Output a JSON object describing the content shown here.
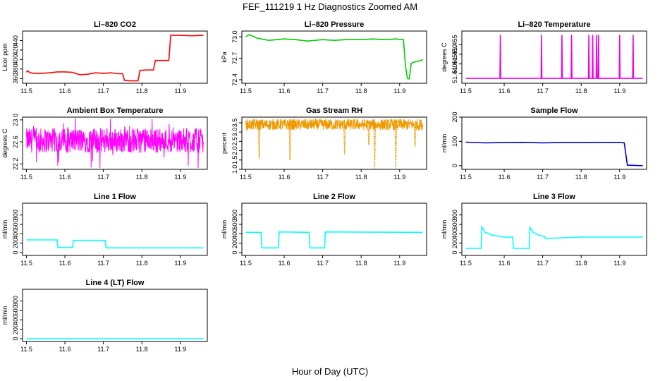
{
  "figure": {
    "title": "FEF_111219  1 Hz Diagnostics Zoomed AM",
    "xlabel": "Hour of Day (UTC)"
  },
  "chart_data": [
    {
      "type": "line",
      "title": "Li–820 CO2",
      "ylabel": "Licor ppm",
      "color": "#ff0000",
      "xlim": [
        11.49,
        11.97
      ],
      "ylim": [
        350,
        460
      ],
      "xticks": [
        "11.5",
        "11.6",
        "11.7",
        "11.8",
        "11.9"
      ],
      "yticks": [
        "360",
        "380",
        "400",
        "420",
        "440"
      ],
      "series": [
        {
          "x": [
            11.5,
            11.503,
            11.51,
            11.52,
            11.54,
            11.56,
            11.58,
            11.6,
            11.62,
            11.63,
            11.64,
            11.66,
            11.68,
            11.7,
            11.72,
            11.74,
            11.75,
            11.755,
            11.77,
            11.78,
            11.79,
            11.795,
            11.81,
            11.83,
            11.835,
            11.85,
            11.87,
            11.875,
            11.9,
            11.93,
            11.96
          ],
          "y": [
            373,
            376,
            372,
            371,
            371,
            372,
            374,
            374,
            373,
            370,
            368,
            369,
            372,
            371,
            372,
            370,
            370,
            356,
            355,
            355,
            355,
            377,
            378,
            378,
            398,
            398,
            398,
            451,
            451,
            450,
            451
          ]
        }
      ]
    },
    {
      "type": "line",
      "title": "Li–820 Pressure",
      "ylabel": "kPa",
      "color": "#00cc00",
      "xlim": [
        11.49,
        11.97
      ],
      "ylim": [
        72.35,
        73.08
      ],
      "xticks": [
        "11.5",
        "11.6",
        "11.7",
        "11.8",
        "11.9"
      ],
      "yticks": [
        "72.4",
        "72.7",
        "73.0"
      ],
      "series": [
        {
          "x": [
            11.5,
            11.51,
            11.53,
            11.56,
            11.6,
            11.63,
            11.66,
            11.7,
            11.73,
            11.76,
            11.8,
            11.83,
            11.86,
            11.89,
            11.91,
            11.915,
            11.92,
            11.925,
            11.93,
            11.94,
            11.95,
            11.96
          ],
          "y": [
            73.0,
            73.03,
            72.98,
            72.95,
            72.97,
            72.96,
            72.94,
            72.96,
            72.95,
            72.96,
            72.96,
            72.97,
            72.96,
            72.97,
            72.96,
            72.6,
            72.42,
            72.41,
            72.63,
            72.65,
            72.66,
            72.68
          ]
        }
      ]
    },
    {
      "type": "line",
      "title": "Li–820 Temperature",
      "ylabel": "degrees C",
      "color": "#ee00ee",
      "xlim": [
        11.49,
        11.97
      ],
      "ylim": [
        51.435,
        51.462
      ],
      "xticks": [
        "11.5",
        "11.6",
        "11.7",
        "11.8",
        "11.9"
      ],
      "yticks": [
        "51.440",
        "51.445",
        "51.450",
        "51.455"
      ],
      "series": [
        {
          "x": [
            11.5,
            11.589,
            11.59,
            11.591,
            11.696,
            11.697,
            11.698,
            11.749,
            11.75,
            11.751,
            11.774,
            11.775,
            11.776,
            11.819,
            11.82,
            11.821,
            11.829,
            11.83,
            11.831,
            11.839,
            11.84,
            11.841,
            11.844,
            11.845,
            11.846,
            11.899,
            11.9,
            11.901,
            11.934,
            11.935,
            11.936,
            11.96
          ],
          "y": [
            51.4375,
            51.4375,
            51.46,
            51.4375,
            51.4375,
            51.46,
            51.4375,
            51.4375,
            51.46,
            51.4375,
            51.4375,
            51.46,
            51.4375,
            51.4375,
            51.46,
            51.4375,
            51.4375,
            51.46,
            51.4375,
            51.4375,
            51.46,
            51.4375,
            51.4375,
            51.46,
            51.4375,
            51.4375,
            51.46,
            51.4375,
            51.4375,
            51.46,
            51.4375,
            51.4375
          ]
        }
      ]
    },
    {
      "type": "line",
      "title": "Ambient Box Temperature",
      "ylabel": "degrees C",
      "color": "#ff00ff",
      "xlim": [
        11.49,
        11.97
      ],
      "ylim": [
        22.1,
        23.05
      ],
      "xticks": [
        "11.5",
        "11.6",
        "11.7",
        "11.8",
        "11.9"
      ],
      "yticks": [
        "22.2",
        "22.6",
        "23.0"
      ],
      "noise": {
        "base": 22.6,
        "band": [
          22.4,
          22.85
        ],
        "spike_low": 22.1,
        "spike_high": 23.05
      }
    },
    {
      "type": "line",
      "title": "Gas Stream RH",
      "ylabel": "percent",
      "color": "#ee9900",
      "xlim": [
        11.49,
        11.97
      ],
      "ylim": [
        1.0,
        3.8
      ],
      "xticks": [
        "11.5",
        "11.6",
        "11.7",
        "11.8",
        "11.9"
      ],
      "yticks": [
        "1.0",
        "1.5",
        "2.0",
        "2.5",
        "3.0",
        "3.5"
      ],
      "noise": {
        "base": 3.35,
        "band": [
          3.1,
          3.7
        ]
      },
      "dips": [
        {
          "x": 11.535,
          "y": 1.6
        },
        {
          "x": 11.615,
          "y": 1.5
        },
        {
          "x": 11.757,
          "y": 1.8
        },
        {
          "x": 11.82,
          "y": 2.3
        },
        {
          "x": 11.835,
          "y": 1.05
        },
        {
          "x": 11.89,
          "y": 1.05
        },
        {
          "x": 11.94,
          "y": 2.2
        }
      ]
    },
    {
      "type": "line",
      "title": "Sample Flow",
      "ylabel": "ml/min",
      "color": "#0000cc",
      "xlim": [
        11.49,
        11.97
      ],
      "ylim": [
        -15,
        200
      ],
      "xticks": [
        "11.5",
        "11.6",
        "11.7",
        "11.8",
        "11.9"
      ],
      "yticks": [
        "0",
        "100",
        "200"
      ],
      "series": [
        {
          "x": [
            11.5,
            11.55,
            11.6,
            11.65,
            11.7,
            11.75,
            11.8,
            11.85,
            11.9,
            11.912,
            11.92,
            11.96
          ],
          "y": [
            97,
            94,
            95,
            96,
            94,
            95,
            95,
            96,
            96,
            94,
            2,
            0
          ]
        }
      ]
    },
    {
      "type": "line",
      "title": "Line 1 Flow",
      "ylabel": "ml/min",
      "color": "#00ffff",
      "xlim": [
        11.49,
        11.97
      ],
      "ylim": [
        -60,
        1050
      ],
      "xticks": [
        "11.5",
        "11.6",
        "11.7",
        "11.8",
        "11.9"
      ],
      "yticks": [
        "0",
        "200",
        "400",
        "600",
        "800"
      ],
      "series": [
        {
          "x": [
            11.5,
            11.58,
            11.582,
            11.62,
            11.622,
            11.705,
            11.707,
            11.96
          ],
          "y": [
            270,
            270,
            110,
            110,
            260,
            260,
            100,
            100
          ]
        }
      ]
    },
    {
      "type": "line",
      "title": "Line 2 Flow",
      "ylabel": "ml/min",
      "color": "#00ffff",
      "xlim": [
        11.49,
        11.97
      ],
      "ylim": [
        -60,
        1050
      ],
      "xticks": [
        "11.5",
        "11.6",
        "11.7",
        "11.8",
        "11.9"
      ],
      "yticks": [
        "0",
        "200",
        "400",
        "600",
        "800"
      ],
      "series": [
        {
          "x": [
            11.5,
            11.54,
            11.542,
            11.585,
            11.587,
            11.665,
            11.667,
            11.705,
            11.707,
            11.96
          ],
          "y": [
            430,
            430,
            100,
            100,
            440,
            430,
            100,
            100,
            440,
            430
          ]
        }
      ]
    },
    {
      "type": "line",
      "title": "Line 3 Flow",
      "ylabel": "ml/min",
      "color": "#00ffff",
      "xlim": [
        11.49,
        11.97
      ],
      "ylim": [
        -60,
        1050
      ],
      "xticks": [
        "11.5",
        "11.6",
        "11.7",
        "11.8",
        "11.9"
      ],
      "yticks": [
        "0",
        "200",
        "400",
        "600",
        "800"
      ],
      "series": [
        {
          "x": [
            11.5,
            11.54,
            11.542,
            11.55,
            11.57,
            11.6,
            11.622,
            11.624,
            11.665,
            11.667,
            11.675,
            11.69,
            11.705,
            11.707,
            11.8,
            11.96
          ],
          "y": [
            90,
            90,
            550,
            430,
            370,
            330,
            330,
            90,
            90,
            540,
            430,
            370,
            340,
            300,
            330,
            330
          ]
        }
      ]
    },
    {
      "type": "line",
      "title": "Line 4 (LT) Flow",
      "ylabel": "ml/min",
      "color": "#00ffff",
      "xlim": [
        11.49,
        11.97
      ],
      "ylim": [
        -60,
        1050
      ],
      "xticks": [
        "11.5",
        "11.6",
        "11.7",
        "11.8",
        "11.9"
      ],
      "yticks": [
        "0",
        "200",
        "400",
        "600",
        "800"
      ],
      "series": [
        {
          "x": [
            11.5,
            11.96
          ],
          "y": [
            0,
            0
          ]
        }
      ]
    }
  ]
}
